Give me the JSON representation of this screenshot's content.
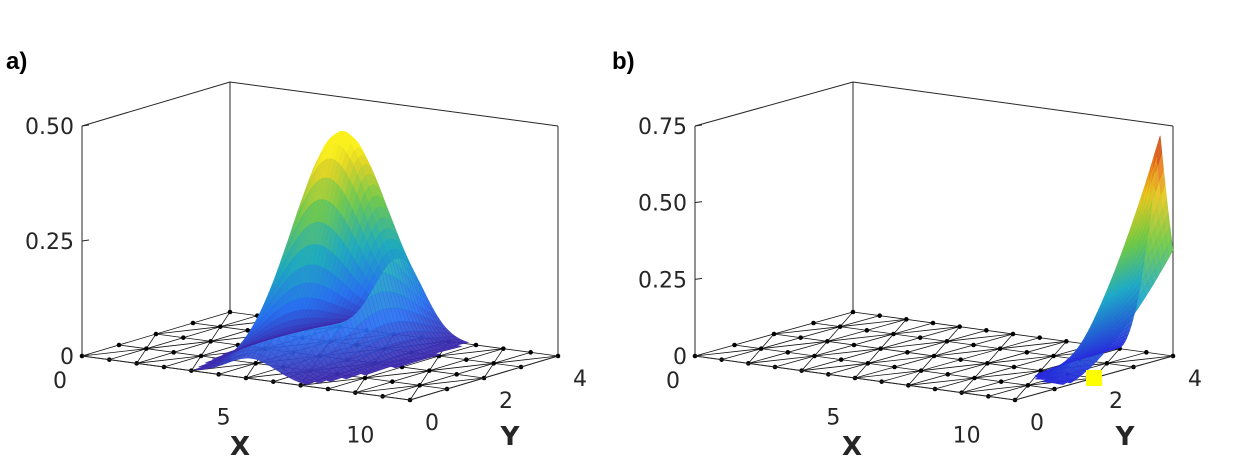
{
  "chart_data": [
    {
      "panel_label": "a)",
      "type": "surface3d",
      "xlabel": "X",
      "ylabel": "Y",
      "zlabel": "",
      "x_range": [
        0,
        12
      ],
      "y_range": [
        0,
        4
      ],
      "z_range": [
        0,
        0.5
      ],
      "z_ticks": [
        "0",
        "0.25",
        "0.50"
      ],
      "x_ticks": [
        "0",
        "5",
        "10"
      ],
      "y_ticks": [
        "0",
        "2",
        "4"
      ],
      "mesh": "triangulated grid on z = 0 with nodes marked by black dots",
      "surface": {
        "shape": "gaussian ridge along Y",
        "peak_z": 0.48,
        "peak_x": 6.2,
        "peak_y": 2.4,
        "colormap": "parula"
      }
    },
    {
      "panel_label": "b)",
      "type": "surface3d",
      "xlabel": "X",
      "ylabel": "Y",
      "zlabel": "",
      "x_range": [
        0,
        12
      ],
      "y_range": [
        0,
        4
      ],
      "z_range": [
        0,
        0.75
      ],
      "z_ticks": [
        "0",
        "0.25",
        "0.50",
        "0.75"
      ],
      "x_ticks": [
        "0",
        "5",
        "10"
      ],
      "y_ticks": [
        "0",
        "2",
        "4"
      ],
      "mesh": "triangulated grid on z = 0 with nodes marked by black dots",
      "surface": {
        "shape": "sharp ridge along Y at the far X edge",
        "peak_z": 0.73,
        "peak_x": 11.5,
        "peak_y": 4,
        "colormap": "jet"
      },
      "marker": {
        "x": 12,
        "y": 2,
        "color": "#ffff00"
      }
    }
  ]
}
